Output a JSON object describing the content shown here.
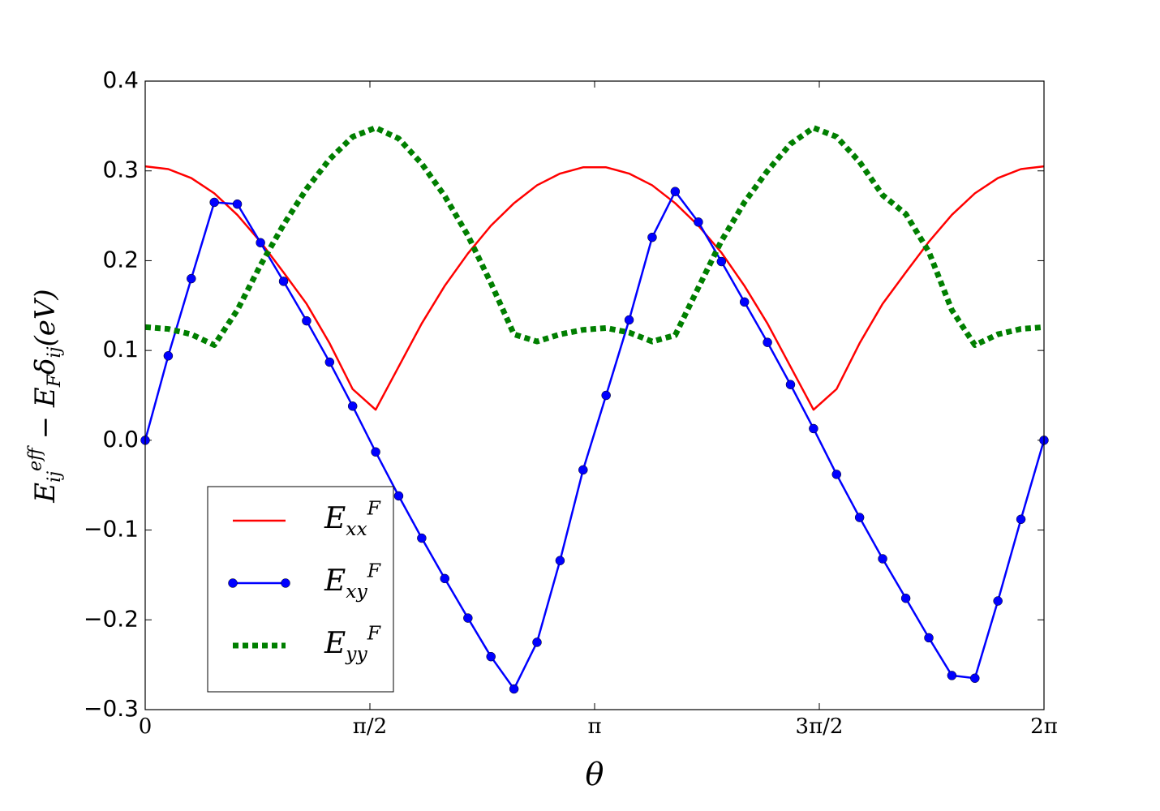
{
  "chart_data": {
    "type": "line",
    "xlabel": "θ",
    "ylabel": "E_{ij}^{eff} − E_{F}δ_{ij}(eV)",
    "x": [
      0,
      0.161,
      0.322,
      0.483,
      0.644,
      0.806,
      0.967,
      1.128,
      1.289,
      1.45,
      1.611,
      1.772,
      1.933,
      2.094,
      2.256,
      2.417,
      2.578,
      2.739,
      2.9,
      3.061,
      3.222,
      3.383,
      3.544,
      3.705,
      3.867,
      4.028,
      4.189,
      4.35,
      4.511,
      4.672,
      4.833,
      4.994,
      5.155,
      5.317,
      5.478,
      5.639,
      5.8,
      5.961,
      6.122,
      6.283
    ],
    "series": [
      {
        "name": "E_{xx}^{F}",
        "color": "#ff0000",
        "style": "solid",
        "marker": false,
        "values": [
          0.305,
          0.302,
          0.292,
          0.275,
          0.251,
          0.221,
          0.187,
          0.152,
          0.108,
          0.057,
          0.034,
          0.082,
          0.13,
          0.172,
          0.208,
          0.239,
          0.264,
          0.284,
          0.297,
          0.304,
          0.304,
          0.297,
          0.284,
          0.264,
          0.239,
          0.209,
          0.172,
          0.13,
          0.082,
          0.034,
          0.057,
          0.108,
          0.152,
          0.187,
          0.221,
          0.251,
          0.275,
          0.292,
          0.302,
          0.305
        ]
      },
      {
        "name": "E_{xy}^{F}",
        "color": "#0000ff",
        "style": "solid",
        "marker": true,
        "values": [
          0.0,
          0.094,
          0.18,
          0.265,
          0.263,
          0.22,
          0.177,
          0.133,
          0.087,
          0.038,
          -0.013,
          -0.062,
          -0.109,
          -0.154,
          -0.198,
          -0.241,
          -0.277,
          -0.225,
          -0.134,
          -0.033,
          0.05,
          0.134,
          0.226,
          0.277,
          0.243,
          0.199,
          0.154,
          0.109,
          0.062,
          0.013,
          -0.038,
          -0.086,
          -0.132,
          -0.176,
          -0.22,
          -0.262,
          -0.265,
          -0.179,
          -0.088,
          0.0
        ]
      },
      {
        "name": "E_{yy}^{F}",
        "color": "#007f00",
        "style": "dotted",
        "marker": false,
        "values": [
          0.126,
          0.124,
          0.118,
          0.106,
          0.145,
          0.195,
          0.24,
          0.28,
          0.313,
          0.338,
          0.348,
          0.336,
          0.308,
          0.272,
          0.228,
          0.175,
          0.118,
          0.11,
          0.118,
          0.123,
          0.125,
          0.12,
          0.11,
          0.117,
          0.17,
          0.222,
          0.265,
          0.3,
          0.33,
          0.348,
          0.338,
          0.31,
          0.273,
          0.252,
          0.21,
          0.145,
          0.106,
          0.118,
          0.124,
          0.126
        ]
      }
    ],
    "xlim": [
      0,
      6.2832
    ],
    "xticks": [
      0,
      {
        "value": 1.5708,
        "label": "π/2"
      },
      {
        "value": 3.1416,
        "label": "π"
      },
      {
        "value": 4.7124,
        "label": "3π/2"
      },
      {
        "value": 6.2832,
        "label": "2π"
      }
    ],
    "ylim": [
      -0.3,
      0.4
    ],
    "yticks": [
      {
        "value": -0.3,
        "label": "−0.3"
      },
      {
        "value": -0.2,
        "label": "−0.2"
      },
      {
        "value": -0.1,
        "label": "−0.1"
      },
      {
        "value": 0,
        "label": "0.0"
      },
      0.1,
      0.2,
      0.3,
      0.4
    ],
    "legend": "lower left"
  }
}
